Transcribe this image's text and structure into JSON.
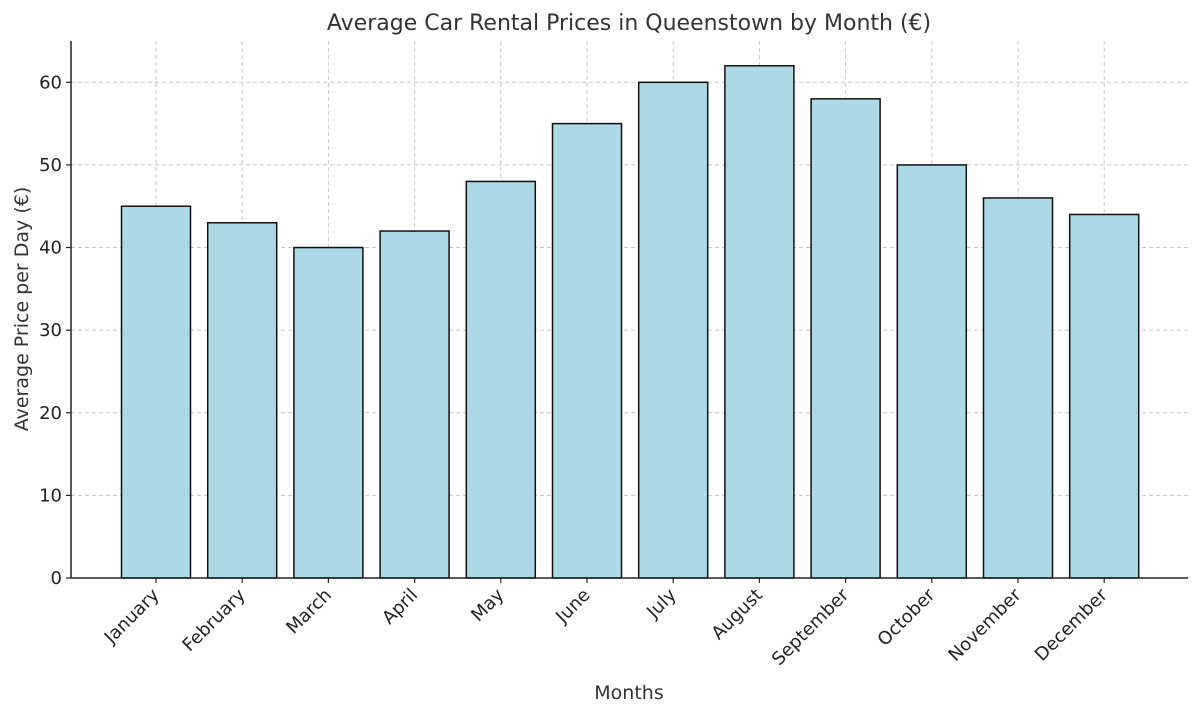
{
  "chart_data": {
    "type": "bar",
    "title": "Average Car Rental Prices in Queenstown by Month (€)",
    "xlabel": "Months",
    "ylabel": "Average Price per Day (€)",
    "categories": [
      "January",
      "February",
      "March",
      "April",
      "May",
      "June",
      "July",
      "August",
      "September",
      "October",
      "November",
      "December"
    ],
    "values": [
      45,
      43,
      40,
      42,
      48,
      55,
      60,
      62,
      58,
      50,
      46,
      44
    ],
    "ylim": [
      0,
      65
    ],
    "yticks": [
      0,
      10,
      20,
      30,
      40,
      50,
      60
    ],
    "ytick_labels": [
      "0",
      "10",
      "20",
      "30",
      "40",
      "50",
      "60"
    ],
    "grid": true,
    "colors": {
      "bar_fill": "#add8e6",
      "bar_edge": "#111111",
      "grid": "#c8c8c8",
      "axis": "#222222"
    }
  }
}
